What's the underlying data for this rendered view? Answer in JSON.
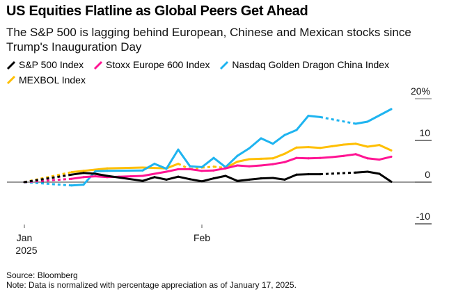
{
  "header": {
    "title": "US Equities Flatline as Global Peers Get Ahead",
    "subtitle": "The S&P 500 is lagging behind European, Chinese and Mexican stocks since Trump's Inauguration Day"
  },
  "footer": {
    "source": "Source: Bloomberg",
    "note": "Note: Data is normalized with percentage appreciation as of January 17, 2025."
  },
  "chart_data": {
    "type": "line",
    "title": "US Equities Flatline as Global Peers Get Ahead",
    "subtitle": "The S&P 500 is lagging behind European, Chinese and Mexican stocks since Trump's Inauguration Day",
    "xlabel": "",
    "ylabel": "",
    "x_unit": "days since Jan 17, 2025",
    "xlim": [
      0,
      31
    ],
    "ylim": [
      -10,
      20
    ],
    "y_ticks": [
      {
        "value": 20,
        "label": "20%"
      },
      {
        "value": 10,
        "label": "10"
      },
      {
        "value": 0,
        "label": "0"
      },
      {
        "value": -10,
        "label": "-10"
      }
    ],
    "x_ticks": [
      {
        "value": 0,
        "label": "Jan",
        "label2": "2025"
      },
      {
        "value": 15,
        "label": "Feb",
        "label2": ""
      }
    ],
    "grid": false,
    "zero_line": true,
    "legend_position": "top-left",
    "series": [
      {
        "name": "S&P 500 Index",
        "color": "#000000",
        "x": [
          0,
          4,
          5,
          6,
          7,
          10,
          11,
          12,
          13,
          14,
          15,
          16,
          17,
          18,
          19,
          20,
          21,
          22,
          23,
          24,
          25,
          28,
          29,
          30,
          31
        ],
        "values": [
          0,
          1.8,
          2.2,
          2.0,
          1.5,
          0.3,
          1.2,
          0.6,
          1.3,
          0.7,
          0.2,
          0.9,
          1.5,
          0.3,
          0.6,
          0.9,
          1.0,
          0.6,
          1.8,
          1.9,
          1.9,
          2.3,
          2.5,
          2.0,
          0.1
        ],
        "dashed_segments": [
          [
            0,
            4
          ],
          [
            25,
            28
          ]
        ]
      },
      {
        "name": "Stoxx Europe 600 Index",
        "color": "#ff1493",
        "x": [
          0,
          4,
          5,
          6,
          7,
          8,
          9,
          10,
          11,
          12,
          13,
          14,
          15,
          16,
          17,
          18,
          19,
          20,
          21,
          22,
          23,
          24,
          25,
          26,
          27,
          28,
          29,
          30,
          31
        ],
        "values": [
          0,
          0.8,
          1.2,
          1.4,
          1.2,
          1.3,
          1.4,
          1.5,
          2.0,
          2.5,
          3.1,
          3.1,
          2.7,
          2.8,
          3.3,
          4.0,
          3.8,
          4.0,
          4.3,
          4.8,
          5.8,
          5.7,
          5.8,
          6.0,
          6.3,
          6.7,
          5.7,
          5.4,
          6.1
        ],
        "dashed_segments": [
          [
            0,
            4
          ]
        ]
      },
      {
        "name": "Nasdaq Golden Dragon China Index",
        "color": "#1eb4f0",
        "x": [
          0,
          4,
          5,
          6,
          7,
          10,
          11,
          12,
          13,
          14,
          15,
          16,
          17,
          18,
          19,
          20,
          21,
          22,
          23,
          24,
          25,
          28,
          29,
          31
        ],
        "values": [
          0,
          -0.8,
          -0.6,
          2.6,
          2.7,
          2.8,
          4.4,
          3.2,
          7.8,
          3.8,
          3.6,
          5.8,
          3.6,
          6.3,
          8.1,
          10.5,
          9.2,
          11.3,
          12.5,
          15.9,
          15.6,
          14.0,
          14.5,
          17.5
        ],
        "dashed_segments": [
          [
            0,
            4
          ],
          [
            25,
            28
          ]
        ]
      },
      {
        "name": "MEXBOL Index",
        "color": "#ffbf00",
        "x": [
          0,
          4,
          5,
          6,
          7,
          10,
          11,
          12,
          13,
          14,
          15,
          16,
          17,
          18,
          19,
          20,
          21,
          22,
          23,
          24,
          25,
          26,
          27,
          28,
          29,
          30,
          31
        ],
        "values": [
          0,
          2.4,
          2.7,
          3.0,
          3.3,
          3.5,
          3.4,
          3.3,
          4.4,
          3.1,
          3.5,
          3.7,
          3.4,
          4.9,
          5.5,
          5.6,
          5.7,
          6.8,
          8.3,
          8.4,
          8.2,
          8.6,
          9.0,
          9.2,
          8.5,
          8.9,
          7.6
        ],
        "dashed_segments": [
          [
            0,
            4
          ],
          [
            13,
            17
          ]
        ]
      }
    ]
  }
}
